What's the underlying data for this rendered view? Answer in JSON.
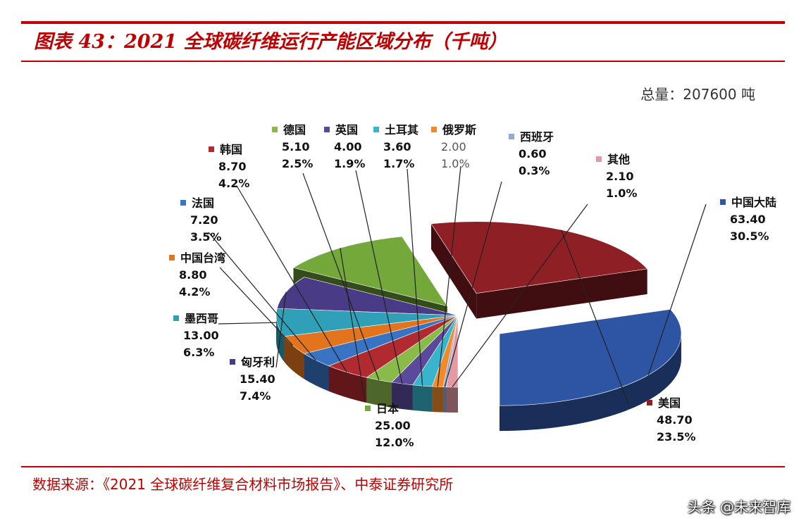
{
  "header": {
    "title": "图表 43：2021 全球碳纤维运行产能区域分布（千吨）",
    "total": "总量：207600 吨"
  },
  "footer": {
    "source": "数据来源：《2021 全球碳纤维复合材料市场报告》、中泰证券研究所",
    "watermark": "头条 @未来智库"
  },
  "chart_data": {
    "type": "pie",
    "title": "2021 全球碳纤维运行产能区域分布（千吨）",
    "unit": "千吨",
    "total_label": "总量：207600 吨",
    "slices": [
      {
        "name": "中国大陆",
        "value": "63.40",
        "percent": "30.5%",
        "color": "#2e55a4"
      },
      {
        "name": "美国",
        "value": "48.70",
        "percent": "23.5%",
        "color": "#8e1f25"
      },
      {
        "name": "日本",
        "value": "25.00",
        "percent": "12.0%",
        "color": "#74a83a"
      },
      {
        "name": "匈牙利",
        "value": "15.40",
        "percent": "7.4%",
        "color": "#4a3b86"
      },
      {
        "name": "墨西哥",
        "value": "13.00",
        "percent": "6.3%",
        "color": "#2fa0b8"
      },
      {
        "name": "中国台湾",
        "value": "8.80",
        "percent": "4.2%",
        "color": "#e2741d"
      },
      {
        "name": "法国",
        "value": "7.20",
        "percent": "3.5%",
        "color": "#3973c4"
      },
      {
        "name": "韩国",
        "value": "8.70",
        "percent": "4.2%",
        "color": "#b02a30"
      },
      {
        "name": "德国",
        "value": "5.10",
        "percent": "2.5%",
        "color": "#8abb4a"
      },
      {
        "name": "英国",
        "value": "4.00",
        "percent": "1.9%",
        "color": "#5b4a9c"
      },
      {
        "name": "土耳其",
        "value": "3.60",
        "percent": "1.7%",
        "color": "#38b4cc"
      },
      {
        "name": "俄罗斯",
        "value": "2.00",
        "percent": "1.0%",
        "color": "#f08a2a"
      },
      {
        "name": "西班牙",
        "value": "0.60",
        "percent": "0.3%",
        "color": "#92a9d2"
      },
      {
        "name": "其他",
        "value": "2.10",
        "percent": "1.0%",
        "color": "#e39aa6"
      }
    ]
  }
}
